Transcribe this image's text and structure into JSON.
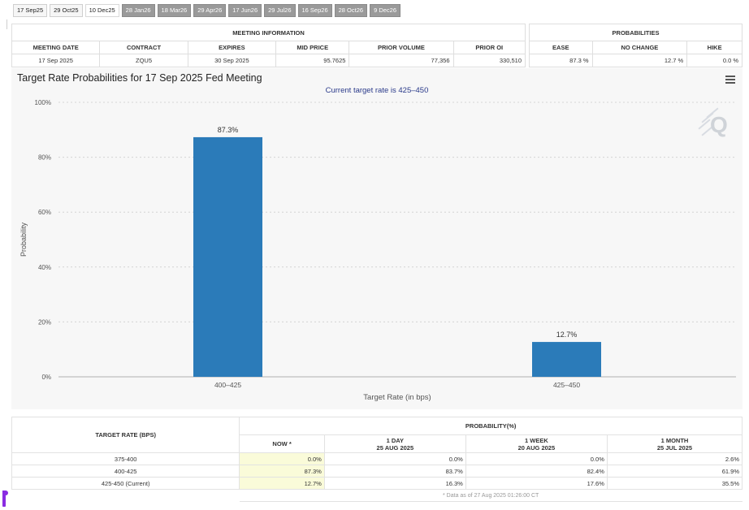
{
  "tabs": [
    {
      "label": "17 Sep25",
      "style": "light"
    },
    {
      "label": "29 Oct25",
      "style": "light"
    },
    {
      "label": "10 Dec25",
      "style": "sel"
    },
    {
      "label": "28 Jan26",
      "style": "dark"
    },
    {
      "label": "18 Mar26",
      "style": "dark"
    },
    {
      "label": "29 Apr26",
      "style": "dark"
    },
    {
      "label": "17 Jun26",
      "style": "dark"
    },
    {
      "label": "29 Jul26",
      "style": "dark"
    },
    {
      "label": "16 Sep26",
      "style": "dark"
    },
    {
      "label": "28 Oct26",
      "style": "dark"
    },
    {
      "label": "9 Dec26",
      "style": "dark"
    }
  ],
  "meeting_info": {
    "header": "MEETING INFORMATION",
    "columns": [
      "MEETING DATE",
      "CONTRACT",
      "EXPIRES",
      "MID PRICE",
      "PRIOR VOLUME",
      "PRIOR OI"
    ],
    "row": [
      "17 Sep 2025",
      "ZQU5",
      "30 Sep 2025",
      "95.7625",
      "77,356",
      "330,510"
    ]
  },
  "probabilities": {
    "header": "PROBABILITIES",
    "columns": [
      "EASE",
      "NO CHANGE",
      "HIKE"
    ],
    "row": [
      "87.3 %",
      "12.7 %",
      "0.0 %"
    ]
  },
  "chart": {
    "title": "Target Rate Probabilities for 17 Sep 2025 Fed Meeting",
    "subtitle": "Current target rate is 425–450",
    "menu_icon": "hamburger-menu-icon",
    "watermark": "Q"
  },
  "chart_data": {
    "type": "bar",
    "categories": [
      "400–425",
      "425–450"
    ],
    "values": [
      87.3,
      12.7
    ],
    "data_labels": [
      "87.3%",
      "12.7%"
    ],
    "xlabel": "Target Rate (in bps)",
    "ylabel": "Probability",
    "ylim": [
      0,
      100
    ],
    "yticks": [
      "0%",
      "20%",
      "40%",
      "60%",
      "80%",
      "100%"
    ],
    "grid": true,
    "bar_color": "#2b7bb9"
  },
  "prob_table": {
    "col_header": "TARGET RATE (BPS)",
    "group_header": "PROBABILITY(%)",
    "periods": [
      {
        "label": "NOW *",
        "date": ""
      },
      {
        "label": "1 DAY",
        "date": "25 AUG 2025"
      },
      {
        "label": "1 WEEK",
        "date": "20 AUG 2025"
      },
      {
        "label": "1 MONTH",
        "date": "25 JUL 2025"
      }
    ],
    "rows": [
      {
        "rate": "375-400",
        "values": [
          "0.0%",
          "0.0%",
          "0.0%",
          "2.6%"
        ]
      },
      {
        "rate": "400-425",
        "values": [
          "87.3%",
          "83.7%",
          "82.4%",
          "61.9%"
        ]
      },
      {
        "rate": "425-450 (Current)",
        "values": [
          "12.7%",
          "16.3%",
          "17.6%",
          "35.5%"
        ]
      }
    ],
    "footnote": "* Data as of 27 Aug 2025 01:26:00 CT"
  }
}
